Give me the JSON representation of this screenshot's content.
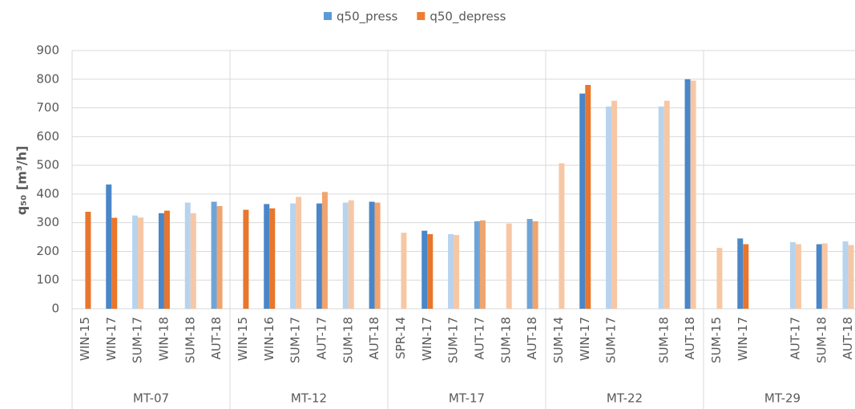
{
  "chart_data": {
    "type": "bar",
    "ylabel": "q₅₀ [m³/h]",
    "groups": [
      "MT-07",
      "MT-12",
      "MT-17",
      "MT-22",
      "MT-29"
    ],
    "categories": [
      "WIN-15",
      "WIN-17",
      "SUM-17",
      "WIN-18",
      "SUM-18",
      "AUT-18",
      "WIN-15",
      "WIN-16",
      "SUM-17",
      "AUT-17",
      "SUM-18",
      "AUT-18",
      "SPR-14",
      "WIN-17",
      "SUM-17",
      "AUT-17",
      "SUM-18",
      "AUT-18",
      "SUM-14",
      "WIN-17",
      "SUM-17",
      null,
      "SUM-18",
      "AUT-18",
      "SUM-15",
      "WIN-17",
      null,
      "AUT-17",
      "SUM-18",
      "AUT-18"
    ],
    "series": [
      {
        "name": "q50_press",
        "color": "#5b9bd5",
        "values": [
          null,
          433,
          325,
          333,
          370,
          373,
          null,
          365,
          367,
          367,
          370,
          373,
          null,
          272,
          260,
          305,
          null,
          313,
          null,
          750,
          705,
          null,
          705,
          800,
          null,
          245,
          null,
          232,
          225,
          235
        ],
        "point_colors": [
          "#4a86c8",
          "#4a86c8",
          "#b7d3ee",
          "#4a86c8",
          "#b7d3ee",
          "#6fa4d8",
          "#4a86c8",
          "#4a86c8",
          "#b7d3ee",
          "#4a86c8",
          "#b7d3ee",
          "#4a86c8",
          "#b7d3ee",
          "#4a86c8",
          "#b7d3ee",
          "#6fa4d8",
          "#b7d3ee",
          "#6fa4d8",
          "#b7d3ee",
          "#4a86c8",
          "#b7d3ee",
          "#b7d3ee",
          "#b7d3ee",
          "#4a86c8",
          "#b7d3ee",
          "#4a86c8",
          "#b7d3ee",
          "#b7d3ee",
          "#4a86c8",
          "#b7d3ee"
        ]
      },
      {
        "name": "q50_depress",
        "color": "#ed7d31",
        "values": [
          338,
          317,
          318,
          342,
          333,
          358,
          345,
          350,
          390,
          407,
          378,
          370,
          265,
          260,
          257,
          308,
          297,
          305,
          507,
          780,
          725,
          null,
          725,
          795,
          212,
          225,
          null,
          225,
          228,
          222
        ],
        "point_colors": [
          "#e8762c",
          "#e8762c",
          "#f7c7a5",
          "#e8762c",
          "#f7c7a5",
          "#f0a46e",
          "#e8762c",
          "#e8762c",
          "#f7c7a5",
          "#f0a46e",
          "#f7c7a5",
          "#f0a46e",
          "#f7c7a5",
          "#e8762c",
          "#f7c7a5",
          "#f0a46e",
          "#f7c7a5",
          "#f0a46e",
          "#f7c7a5",
          "#e8762c",
          "#f7c7a5",
          "#f7c7a5",
          "#f7c7a5",
          "#f7c7a5",
          "#f7c7a5",
          "#e8762c",
          "#f7c7a5",
          "#f7c7a5",
          "#f7c7a5",
          "#f7c7a5"
        ]
      }
    ],
    "ylim": [
      0,
      900
    ],
    "yticks": [
      0,
      100,
      200,
      300,
      400,
      500,
      600,
      700,
      800,
      900
    ],
    "grid": true,
    "legend": "top"
  }
}
